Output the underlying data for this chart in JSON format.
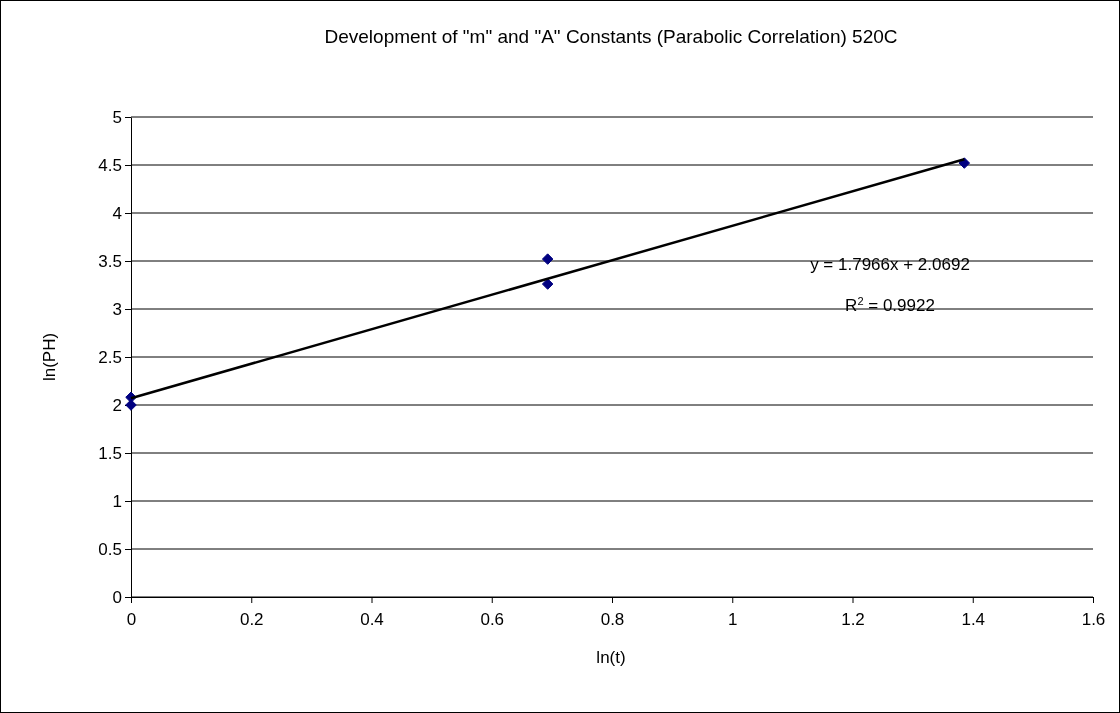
{
  "chart_data": {
    "type": "scatter",
    "title": "Development of \"m\" and \"A\" Constants (Parabolic Correlation) 520C",
    "xlabel": "ln(t)",
    "ylabel": "ln(PH)",
    "xlim": [
      0,
      1.6
    ],
    "xticks": [
      0,
      0.2,
      0.4,
      0.6,
      0.8,
      1,
      1.2,
      1.4,
      1.6
    ],
    "ylim": [
      0,
      5
    ],
    "yticks": [
      0,
      0.5,
      1,
      1.5,
      2,
      2.5,
      3,
      3.5,
      4,
      4.5,
      5
    ],
    "grid": "y",
    "series": [
      {
        "marker": "diamond",
        "color": "#000080",
        "x": [
          0,
          0,
          0.693,
          0.693,
          1.386
        ],
        "values": [
          2.08,
          2.0,
          3.52,
          3.26,
          4.52
        ]
      },
      {
        "type": "line",
        "color": "#000000",
        "line_style": "solid",
        "x": [
          0,
          1.386
        ],
        "values": [
          2.07,
          4.56
        ]
      }
    ],
    "annotations": [
      "y = 1.7966x + 2.0692",
      "R$^{2}$ = 0.9922"
    ]
  }
}
